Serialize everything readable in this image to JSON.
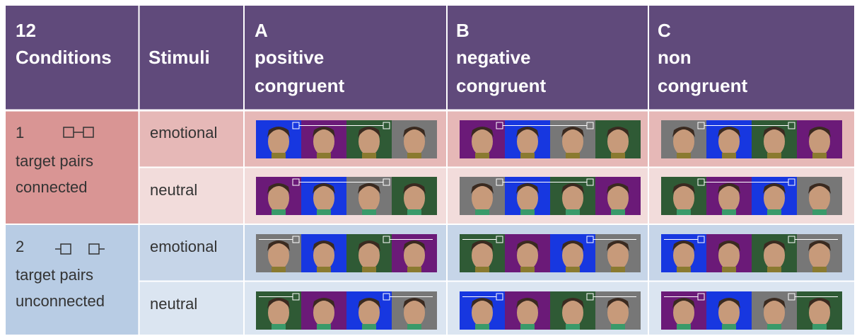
{
  "header": {
    "cells": [
      {
        "lines": [
          "12",
          "Conditions"
        ]
      },
      {
        "lines": [
          "Stimuli"
        ]
      },
      {
        "lines": [
          "A",
          "positive",
          "congruent"
        ]
      },
      {
        "lines": [
          "B",
          "negative",
          "congruent"
        ]
      },
      {
        "lines": [
          "C",
          "non",
          "congruent"
        ]
      }
    ]
  },
  "rows": [
    {
      "number": "1",
      "lines": [
        "target pairs",
        "connected"
      ],
      "stimuli": [
        "emotional",
        "neutral"
      ]
    },
    {
      "number": "2",
      "lines": [
        "target pairs",
        "unconnected"
      ],
      "stimuli": [
        "emotional",
        "neutral"
      ]
    }
  ]
}
